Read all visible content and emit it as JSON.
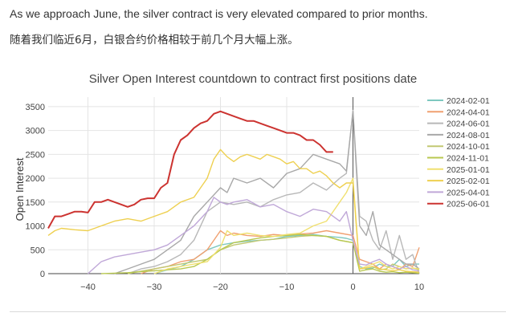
{
  "caption": {
    "english": "As we approach June, the silver contract is very elevated compared to prior months.",
    "chinese": "随着我们临近6月，白银合约价格相较于前几个月大幅上涨。"
  },
  "chart_data": {
    "type": "line",
    "title": "Silver Open Interest countdown to contract first positions date",
    "xlabel": "",
    "ylabel": "Open Interest",
    "xlim": [
      -46,
      10
    ],
    "ylim": [
      0,
      3700
    ],
    "x_ticks": [
      -40,
      -30,
      -20,
      -10,
      0,
      10
    ],
    "y_ticks": [
      0,
      500,
      1000,
      1500,
      2000,
      2500,
      3000,
      3500
    ],
    "grid": true,
    "legend_position": "right",
    "series": [
      {
        "name": "2024-02-01",
        "color": "#7ec8c0",
        "x": [
          -30,
          -28,
          -26,
          -24,
          -22,
          -20,
          -18,
          -16,
          -14,
          -12,
          -10,
          -8,
          -6,
          -4,
          -2,
          -1,
          0,
          1,
          2,
          3,
          4,
          5,
          6,
          7,
          8,
          9,
          10
        ],
        "y": [
          0,
          80,
          150,
          300,
          500,
          600,
          650,
          680,
          700,
          720,
          780,
          800,
          820,
          780,
          760,
          740,
          700,
          150,
          100,
          120,
          200,
          150,
          160,
          300,
          150,
          200,
          200
        ]
      },
      {
        "name": "2024-04-01",
        "color": "#f0a070",
        "x": [
          -32,
          -30,
          -28,
          -26,
          -24,
          -22,
          -21,
          -20,
          -19,
          -18,
          -16,
          -14,
          -12,
          -10,
          -8,
          -6,
          -4,
          -2,
          0,
          1,
          2,
          3,
          4,
          5,
          6,
          7,
          8,
          9,
          10
        ],
        "y": [
          0,
          100,
          150,
          250,
          300,
          500,
          700,
          900,
          800,
          850,
          800,
          780,
          820,
          800,
          830,
          850,
          900,
          850,
          800,
          300,
          250,
          200,
          100,
          200,
          150,
          80,
          200,
          150,
          550
        ]
      },
      {
        "name": "2024-06-01",
        "color": "#b8b8b8",
        "x": [
          -34,
          -32,
          -30,
          -28,
          -26,
          -24,
          -22,
          -20,
          -18,
          -16,
          -14,
          -12,
          -10,
          -8,
          -6,
          -4,
          -2,
          -1,
          0,
          1,
          2,
          3,
          4,
          5,
          6,
          7,
          8,
          9,
          10
        ],
        "y": [
          0,
          100,
          150,
          250,
          400,
          700,
          1300,
          1500,
          1450,
          1500,
          1400,
          1550,
          1650,
          1700,
          1900,
          1750,
          2000,
          2100,
          3420,
          1200,
          1100,
          700,
          500,
          900,
          300,
          800,
          300,
          400,
          0
        ]
      },
      {
        "name": "2024-08-01",
        "color": "#a8a8a8",
        "x": [
          -36,
          -34,
          -32,
          -30,
          -28,
          -26,
          -24,
          -22,
          -20,
          -19,
          -18,
          -16,
          -14,
          -12,
          -10,
          -8,
          -6,
          -4,
          -2,
          -1,
          0,
          1,
          2,
          3,
          4,
          5,
          6,
          7,
          8,
          9,
          10
        ],
        "y": [
          0,
          100,
          200,
          300,
          500,
          700,
          1200,
          1500,
          1800,
          1700,
          2000,
          1900,
          2000,
          1800,
          2100,
          2200,
          2500,
          2400,
          2300,
          2150,
          3400,
          1000,
          800,
          1300,
          600,
          500,
          400,
          300,
          200,
          200,
          100
        ]
      },
      {
        "name": "2024-10-01",
        "color": "#c2c872",
        "x": [
          -34,
          -32,
          -30,
          -28,
          -26,
          -24,
          -22,
          -20,
          -18,
          -16,
          -14,
          -12,
          -10,
          -8,
          -6,
          -4,
          -2,
          0,
          1,
          2,
          3,
          4,
          5,
          6,
          7,
          8,
          9,
          10
        ],
        "y": [
          0,
          50,
          100,
          150,
          200,
          250,
          300,
          500,
          600,
          650,
          700,
          720,
          750,
          780,
          800,
          780,
          700,
          650,
          100,
          120,
          150,
          80,
          100,
          200,
          150,
          100,
          120,
          80
        ]
      },
      {
        "name": "2024-11-01",
        "color": "#b8c850",
        "x": [
          -38,
          -36,
          -34,
          -32,
          -30,
          -28,
          -26,
          -24,
          -22,
          -20,
          -18,
          -16,
          -14,
          -12,
          -10,
          -8,
          -6,
          -4,
          -2,
          0,
          1,
          2,
          3,
          4,
          5,
          6,
          7,
          8,
          9,
          10
        ],
        "y": [
          0,
          10,
          20,
          40,
          60,
          80,
          100,
          150,
          300,
          500,
          650,
          700,
          750,
          780,
          800,
          820,
          800,
          780,
          700,
          650,
          50,
          80,
          100,
          50,
          30,
          40,
          20,
          30,
          20,
          10
        ]
      },
      {
        "name": "2025-01-01",
        "color": "#f0e070",
        "x": [
          -30,
          -28,
          -26,
          -24,
          -22,
          -20,
          -19,
          -18,
          -16,
          -14,
          -12,
          -10,
          -8,
          -6,
          -4,
          -2,
          -1,
          0,
          1,
          2,
          3,
          4,
          5,
          6,
          7,
          8,
          9,
          10
        ],
        "y": [
          0,
          100,
          150,
          200,
          250,
          550,
          900,
          800,
          850,
          800,
          780,
          820,
          850,
          1000,
          1100,
          1500,
          1700,
          2000,
          100,
          150,
          200,
          250,
          150,
          100,
          150,
          100,
          120,
          100
        ]
      },
      {
        "name": "2025-02-01",
        "color": "#eed050",
        "x": [
          -46,
          -45,
          -44,
          -42,
          -40,
          -38,
          -36,
          -34,
          -32,
          -30,
          -28,
          -26,
          -24,
          -22,
          -21,
          -20,
          -19,
          -18,
          -17,
          -16,
          -15,
          -14,
          -13,
          -12,
          -11,
          -10,
          -9,
          -8,
          -7,
          -6,
          -5,
          -4,
          -3,
          -2,
          -1,
          0,
          1,
          2,
          3,
          4,
          5,
          6,
          7,
          8,
          9,
          10
        ],
        "y": [
          800,
          900,
          950,
          920,
          900,
          1000,
          1100,
          1150,
          1100,
          1200,
          1300,
          1500,
          1600,
          2000,
          2400,
          2600,
          2450,
          2350,
          2450,
          2500,
          2450,
          2400,
          2500,
          2450,
          2400,
          2300,
          2350,
          2200,
          2200,
          2100,
          2150,
          2050,
          1900,
          1800,
          1900,
          1900,
          100,
          120,
          150,
          100,
          80,
          60,
          80,
          50,
          40,
          30
        ]
      },
      {
        "name": "2025-04-01",
        "color": "#c0a8d8",
        "x": [
          -40,
          -38,
          -36,
          -34,
          -32,
          -30,
          -28,
          -26,
          -24,
          -22,
          -21,
          -20,
          -19,
          -18,
          -16,
          -14,
          -12,
          -10,
          -8,
          -6,
          -4,
          -3,
          -2,
          -1,
          0,
          1,
          2,
          3,
          4,
          5,
          6,
          7,
          8,
          9,
          10
        ],
        "y": [
          0,
          250,
          350,
          400,
          450,
          500,
          600,
          800,
          1000,
          1300,
          1600,
          1500,
          1450,
          1500,
          1550,
          1400,
          1450,
          1300,
          1200,
          1350,
          1300,
          1200,
          1100,
          1300,
          700,
          200,
          180,
          250,
          300,
          200,
          150,
          100,
          150,
          80,
          50
        ]
      },
      {
        "name": "2025-06-01",
        "color": "#cc3330",
        "x": [
          -46,
          -45,
          -44,
          -43,
          -42,
          -41,
          -40,
          -39,
          -38,
          -37,
          -36,
          -35,
          -34,
          -33,
          -32,
          -31,
          -30,
          -29,
          -28,
          -27,
          -26,
          -25,
          -24,
          -23,
          -22,
          -21,
          -20,
          -19,
          -18,
          -17,
          -16,
          -15,
          -14,
          -13,
          -12,
          -11,
          -10,
          -9,
          -8,
          -7,
          -6,
          -5,
          -4,
          -3
        ],
        "y": [
          950,
          1200,
          1200,
          1250,
          1300,
          1300,
          1280,
          1500,
          1500,
          1550,
          1500,
          1450,
          1400,
          1450,
          1550,
          1580,
          1580,
          1800,
          1900,
          2500,
          2800,
          2900,
          3050,
          3150,
          3200,
          3350,
          3400,
          3350,
          3300,
          3250,
          3200,
          3200,
          3150,
          3100,
          3050,
          3000,
          2950,
          2950,
          2900,
          2800,
          2800,
          2700,
          2550,
          2550
        ]
      }
    ]
  }
}
